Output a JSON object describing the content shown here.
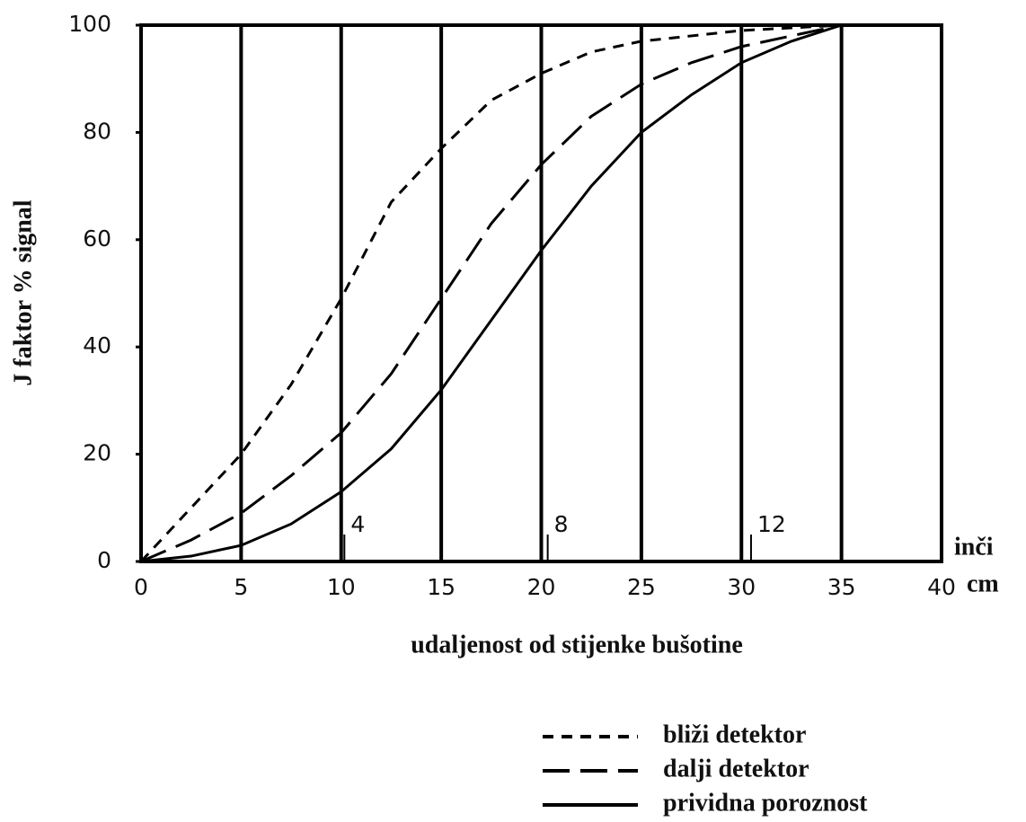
{
  "chart_data": {
    "type": "line",
    "x_label": "udaljenost od stijenke bušotine",
    "y_label": "J faktor % signal",
    "x_unit_label": "cm",
    "x2_unit_label": "inči",
    "x": [
      0,
      2.5,
      5,
      7.5,
      10,
      12.5,
      15,
      17.5,
      20,
      22.5,
      25,
      27.5,
      30,
      32.5,
      35,
      37.5,
      40
    ],
    "series": [
      {
        "name": "bliži detektor",
        "color": "#000000",
        "dash": "short",
        "values": [
          0,
          10,
          20,
          33,
          49,
          67,
          77,
          86,
          91,
          95,
          97,
          98,
          99,
          99.5,
          100,
          100,
          100
        ]
      },
      {
        "name": "dalji detektor",
        "color": "#000000",
        "dash": "long",
        "values": [
          0,
          4,
          9,
          16,
          24,
          35,
          49,
          63,
          74,
          83,
          89,
          93,
          96,
          98,
          100,
          100,
          100
        ]
      },
      {
        "name": "prividna poroznost",
        "color": "#000000",
        "dash": "solid",
        "values": [
          0,
          1,
          3,
          7,
          13,
          21,
          32,
          45,
          58,
          70,
          80,
          87,
          93,
          97,
          100,
          100,
          100
        ]
      }
    ],
    "xlim": [
      0,
      40
    ],
    "xticks": [
      0,
      5,
      10,
      15,
      20,
      25,
      30,
      35,
      40
    ],
    "x2ticks": [
      {
        "value": 10.16,
        "label": "4"
      },
      {
        "value": 20.32,
        "label": "8"
      },
      {
        "value": 30.48,
        "label": "12"
      }
    ],
    "ylim": [
      0,
      100
    ],
    "yticks": [
      0,
      20,
      40,
      60,
      80,
      100
    ],
    "grid": true
  }
}
